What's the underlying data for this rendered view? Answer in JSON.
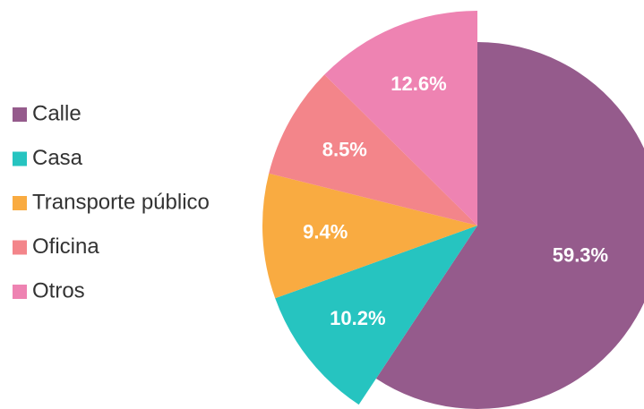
{
  "chart_data": {
    "type": "pie",
    "categories": [
      "Calle",
      "Casa",
      "Transporte público",
      "Oficina",
      "Otros"
    ],
    "values": [
      59.3,
      10.2,
      9.4,
      8.5,
      12.6
    ],
    "value_labels": [
      "59.3%",
      "10.2%",
      "9.4%",
      "8.5%",
      "12.6%"
    ],
    "colors": [
      "#955b8c",
      "#26c4c0",
      "#f9ab41",
      "#f3858a",
      "#ee83b2"
    ],
    "legend": "left"
  }
}
